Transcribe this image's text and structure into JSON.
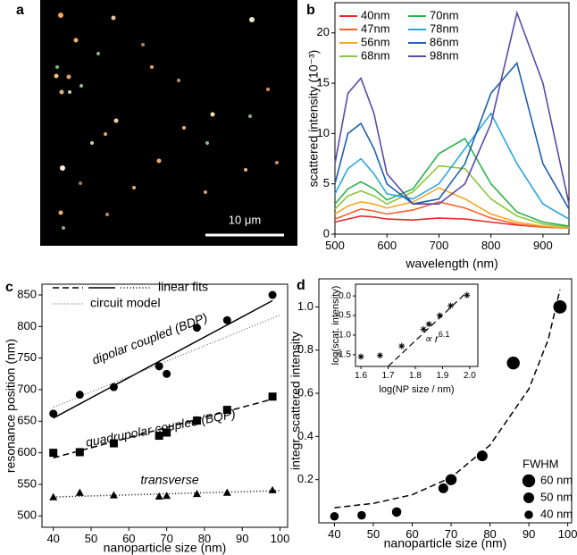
{
  "chart_data": [
    {
      "type": "image",
      "panel_label": "a",
      "scale_bar": "10 μm"
    },
    {
      "type": "line",
      "panel_label": "b",
      "xlabel": "wavelength (nm)",
      "ylabel": "scattered intensity (10⁻³)",
      "xlim": [
        500,
        950
      ],
      "ylim": [
        0,
        23
      ],
      "xticks": [
        500,
        600,
        700,
        800,
        900
      ],
      "yticks": [
        0,
        5,
        10,
        15,
        20
      ],
      "legend": "upper left",
      "x": [
        500,
        525,
        550,
        575,
        600,
        650,
        700,
        750,
        800,
        850,
        900,
        950
      ],
      "series": [
        {
          "name": "40nm",
          "color": "#e8282a",
          "values": [
            1.2,
            1.5,
            1.8,
            1.7,
            1.5,
            1.4,
            1.6,
            1.5,
            1.2,
            0.9,
            0.7,
            0.6
          ]
        },
        {
          "name": "47nm",
          "color": "#f4622a",
          "values": [
            1.5,
            2.0,
            2.5,
            2.3,
            2.0,
            2.4,
            3.2,
            2.6,
            1.6,
            1.0,
            0.7,
            0.6
          ]
        },
        {
          "name": "56nm",
          "color": "#f6a623",
          "values": [
            2.0,
            2.8,
            3.2,
            3.0,
            2.6,
            3.2,
            4.6,
            3.5,
            2.0,
            1.2,
            0.8,
            0.6
          ]
        },
        {
          "name": "68nm",
          "color": "#8cc63f",
          "values": [
            2.5,
            3.8,
            4.3,
            3.8,
            3.0,
            4.2,
            6.8,
            6.5,
            3.5,
            1.8,
            1.0,
            0.7
          ]
        },
        {
          "name": "70nm",
          "color": "#2bb24c",
          "values": [
            3.0,
            4.5,
            5.2,
            4.5,
            3.4,
            4.5,
            8.0,
            9.5,
            5.0,
            2.2,
            1.2,
            0.8
          ]
        },
        {
          "name": "78nm",
          "color": "#29a8e0",
          "values": [
            4.0,
            6.5,
            7.5,
            6.0,
            4.0,
            3.5,
            5.0,
            8.5,
            12.0,
            7.0,
            3.0,
            1.5
          ]
        },
        {
          "name": "86nm",
          "color": "#1f5fae",
          "values": [
            5.0,
            10.0,
            11.0,
            8.5,
            5.0,
            3.0,
            3.5,
            7.0,
            14.0,
            17.0,
            7.0,
            2.5
          ]
        },
        {
          "name": "98nm",
          "color": "#5b4aa8",
          "values": [
            7.0,
            14.0,
            15.5,
            12.0,
            6.0,
            3.0,
            3.0,
            5.0,
            11.0,
            22.0,
            15.0,
            3.0
          ]
        }
      ]
    },
    {
      "type": "scatter",
      "panel_label": "c",
      "xlabel": "nanoparticle size (nm)",
      "ylabel": "resonance position (nm)",
      "xlim": [
        37,
        102
      ],
      "ylim": [
        482,
        867
      ],
      "xticks": [
        40,
        50,
        60,
        70,
        80,
        90,
        100
      ],
      "yticks": [
        500,
        550,
        600,
        650,
        700,
        750,
        800,
        850
      ],
      "x": [
        40,
        47,
        56,
        68,
        70,
        78,
        86,
        98
      ],
      "series": [
        {
          "marker": "circle",
          "color": "#000000",
          "values": [
            662,
            692,
            704,
            737,
            725,
            798,
            810,
            850
          ]
        },
        {
          "marker": "square",
          "color": "#000000",
          "values": [
            600,
            601,
            615,
            627,
            632,
            651,
            668,
            689
          ]
        },
        {
          "marker": "triangle",
          "color": "#000000",
          "values": [
            530,
            537,
            533,
            531,
            532,
            535,
            537,
            541
          ]
        }
      ],
      "fits": [
        {
          "style": "solid",
          "color": "#000000",
          "x": [
            40,
            98
          ],
          "values": [
            655,
            841
          ]
        },
        {
          "style": "dotted",
          "color": "#666666",
          "x": [
            40,
            100
          ],
          "values": [
            672,
            818
          ]
        },
        {
          "style": "dashed",
          "color": "#000000",
          "x": [
            40,
            98
          ],
          "values": [
            592,
            685
          ]
        },
        {
          "style": "dashdot",
          "color": "#000000",
          "x": [
            40,
            100
          ],
          "values": [
            530,
            540
          ]
        }
      ],
      "legend_items": [
        {
          "label": "linear fits",
          "styles": [
            "dashed",
            "solid",
            "dashdot"
          ]
        },
        {
          "label": "circuit model",
          "styles": [
            "dotted"
          ]
        }
      ],
      "annotations": [
        "dipolar coupled (BDP)",
        "quadrupolar coupled (BQP)",
        "transverse"
      ]
    },
    {
      "type": "scatter",
      "panel_label": "d",
      "xlabel": "nanoparticle size (nm)",
      "ylabel": "integr. scattered intensity",
      "xlim": [
        36,
        101
      ],
      "ylim": [
        0,
        1.13
      ],
      "xticks": [
        40,
        50,
        60,
        70,
        80,
        90,
        100
      ],
      "yticks": [
        0.2,
        0.4,
        0.6,
        0.8,
        {
          "value": 1,
          "label": "1.0"
        }
      ],
      "x": [
        40,
        47,
        56,
        68,
        70,
        78,
        86,
        98
      ],
      "series": [
        {
          "marker": "circle",
          "color": "#000000",
          "values": [
            0.03,
            0.035,
            0.05,
            0.16,
            0.2,
            0.31,
            0.74,
            1.0
          ],
          "sizes": [
            40,
            40,
            44,
            46,
            52,
            50,
            60,
            62
          ]
        }
      ],
      "fits": [
        {
          "style": "dashed",
          "color": "#000000",
          "x": [
            40,
            50,
            60,
            70,
            80,
            90,
            95,
            98
          ],
          "values": [
            0.07,
            0.09,
            0.13,
            0.21,
            0.36,
            0.62,
            0.85,
            1.08
          ]
        }
      ],
      "size_legend": {
        "title": "FWHM",
        "values": [
          60,
          50,
          40
        ],
        "labels": [
          "60 nm",
          "50 nm",
          "40 nm"
        ]
      },
      "inset": {
        "xlabel": "log(NP size / nm)",
        "ylabel": "log(scat. intensity)",
        "xlim": [
          1.58,
          2.03
        ],
        "ylim": [
          -1.8,
          0.3
        ],
        "xticks": [
          1.6,
          1.7,
          1.8,
          1.9,
          {
            "value": 2,
            "label": "2.0"
          }
        ],
        "yticks": [
          {
            "value": 0,
            "label": "0.0"
          },
          -0.5,
          {
            "value": -1,
            "label": "-1.0"
          },
          -1.5
        ],
        "marker": "star",
        "x": [
          1.6,
          1.67,
          1.75,
          1.83,
          1.85,
          1.89,
          1.93,
          1.99
        ],
        "values": [
          -1.55,
          -1.52,
          -1.28,
          -0.85,
          -0.72,
          -0.5,
          -0.25,
          0.02
        ],
        "fit": {
          "style": "dashed",
          "x": [
            1.7,
            1.99
          ],
          "values": [
            -1.8,
            0.1
          ]
        },
        "annotation": "∝ r",
        "annotation_exponent": "6.1"
      }
    }
  ]
}
